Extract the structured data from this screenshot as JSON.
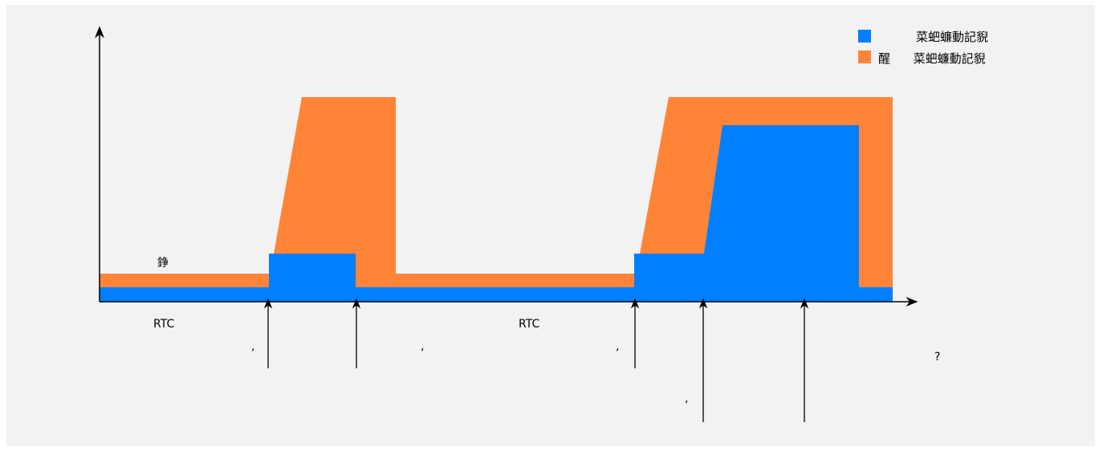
{
  "colors": {
    "background": "#f2f2f2",
    "series_a": "#0080ff",
    "series_b": "#ff8438",
    "axis": "#000000"
  },
  "legend": {
    "items": [
      {
        "marker_color": "#0080ff",
        "text": "菜蚆蠊動記貎"
      },
      {
        "marker_color": "#ff8438",
        "text": "醒      菜蚆蠊動記貎"
      }
    ]
  },
  "labels": {
    "orange_band_label": "錚",
    "rtc_left": "RTC",
    "rtc_right": "RTC",
    "mark_1": ",",
    "mark_2": ",",
    "mark_3": ",",
    "mark_4": ",",
    "mark_5": "?"
  }
}
